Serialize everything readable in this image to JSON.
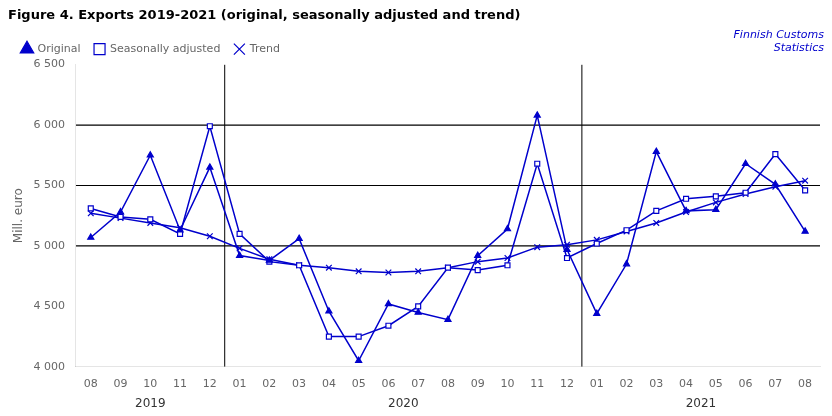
{
  "chart_data": {
    "type": "line",
    "title": "Figure 4. Exports 2019-2021 (original, seasonally adjusted and trend)",
    "ylabel": "Mill. euro",
    "annotations": [
      "Finnish Customs\nStatistics"
    ],
    "color": "#0000CC",
    "categories": [
      "08",
      "09",
      "10",
      "11",
      "12",
      "01",
      "02",
      "03",
      "04",
      "05",
      "06",
      "07",
      "08",
      "09",
      "10",
      "11",
      "12",
      "01",
      "02",
      "03",
      "04",
      "05",
      "06",
      "07",
      "08"
    ],
    "year_groups": [
      {
        "label": "2019",
        "start": 0,
        "end": 4
      },
      {
        "label": "2020",
        "start": 5,
        "end": 16
      },
      {
        "label": "2021",
        "start": 17,
        "end": 24
      }
    ],
    "dividers": [
      4.5,
      16.5
    ],
    "hlines": [
      5000,
      5500,
      6000
    ],
    "series": [
      {
        "name": "Original",
        "color": "#0000CC",
        "marker": "triangle",
        "line_style": "solid",
        "values": [
          5070,
          5280,
          5750,
          5130,
          5650,
          4920,
          4880,
          5060,
          4460,
          4050,
          4520,
          4450,
          4390,
          4920,
          5140,
          6080,
          4970,
          4440,
          4850,
          5780,
          5290,
          5300,
          5680,
          5510,
          5120
        ]
      },
      {
        "name": "Seasonally adjusted",
        "color": "#0000CC",
        "marker": "square",
        "line_style": "solid",
        "values": [
          5310,
          5240,
          5220,
          5100,
          5990,
          5100,
          4870,
          4840,
          4250,
          4250,
          4340,
          4500,
          4820,
          4800,
          4840,
          5680,
          4900,
          5020,
          5130,
          5290,
          5390,
          5410,
          5440,
          5760,
          5460
        ]
      },
      {
        "name": "Trend",
        "color": "#0000CC",
        "marker": "x",
        "line_style": "solid",
        "values": [
          5270,
          5230,
          5190,
          5150,
          5080,
          4980,
          4890,
          4840,
          4820,
          4790,
          4780,
          4790,
          4820,
          4870,
          4900,
          4990,
          5010,
          5050,
          5120,
          5190,
          5280,
          5360,
          5430,
          5490,
          5540
        ]
      }
    ],
    "ylim": [
      4000,
      6500
    ],
    "yticks": [
      {
        "value": 4000,
        "label": "4 000"
      },
      {
        "value": 4500,
        "label": "4 500"
      },
      {
        "value": 5000,
        "label": "5 000"
      },
      {
        "value": 5500,
        "label": "5 500"
      },
      {
        "value": 6000,
        "label": "6 000"
      },
      {
        "value": 6500,
        "label": "6 500"
      }
    ],
    "grid": false,
    "legend": "upper left"
  }
}
